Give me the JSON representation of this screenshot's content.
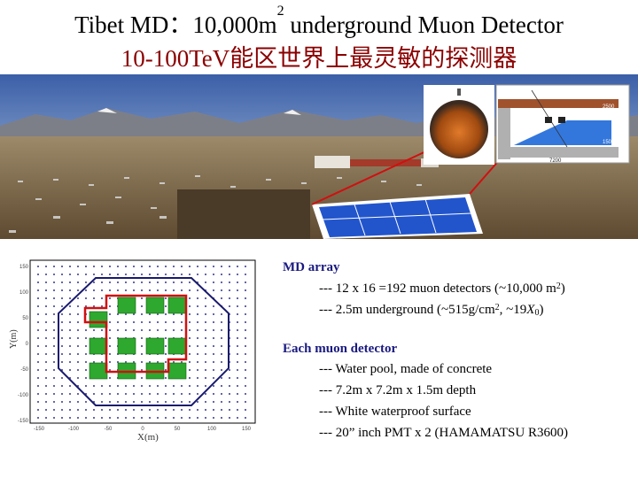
{
  "title": {
    "line1_prefix": "Tibet MD：10,000m",
    "line1_sup": "2",
    "line1_suffix": " underground  Muon  Detector",
    "line2": "10-100TeV能区世界上最灵敏的探测器"
  },
  "photo": {
    "diagram_labels": [
      "2500",
      "1500",
      "7200"
    ]
  },
  "plot": {
    "ylabel": "Y(m)",
    "xlabel": "X(m)",
    "yticks": [
      "150",
      "100",
      "50",
      "0",
      "-50",
      "-100",
      "-150"
    ],
    "xticks": [
      "-150",
      "-100",
      "-50",
      "0",
      "50",
      "100",
      "150"
    ]
  },
  "md_array": {
    "heading": "MD array",
    "line1_prefix": "--- 12 x 16 =192 muon detectors (~10,000 m",
    "line1_sup": "2",
    "line1_suffix": ")",
    "line2_prefix": "--- 2.5m underground (~515g/cm",
    "line2_sup": "2",
    "line2_mid": ", ~19",
    "line2_x": "X",
    "line2_sub": "0",
    "line2_suffix": ")"
  },
  "muon_detector": {
    "heading": "Each muon detector",
    "items": [
      "--- Water pool, made of concrete",
      "--- 7.2m x 7.2m x 1.5m depth",
      "--- White waterproof surface",
      "--- 20” inch PMT x 2 (HAMAMATSU R3600)"
    ]
  },
  "colors": {
    "title_red": "#8b0000",
    "heading_blue": "#1a1a80",
    "detector_green": "#2ea82e",
    "outline_red": "#d01010",
    "outline_navy": "#1a1a6e",
    "pool_blue": "#2255cc"
  }
}
